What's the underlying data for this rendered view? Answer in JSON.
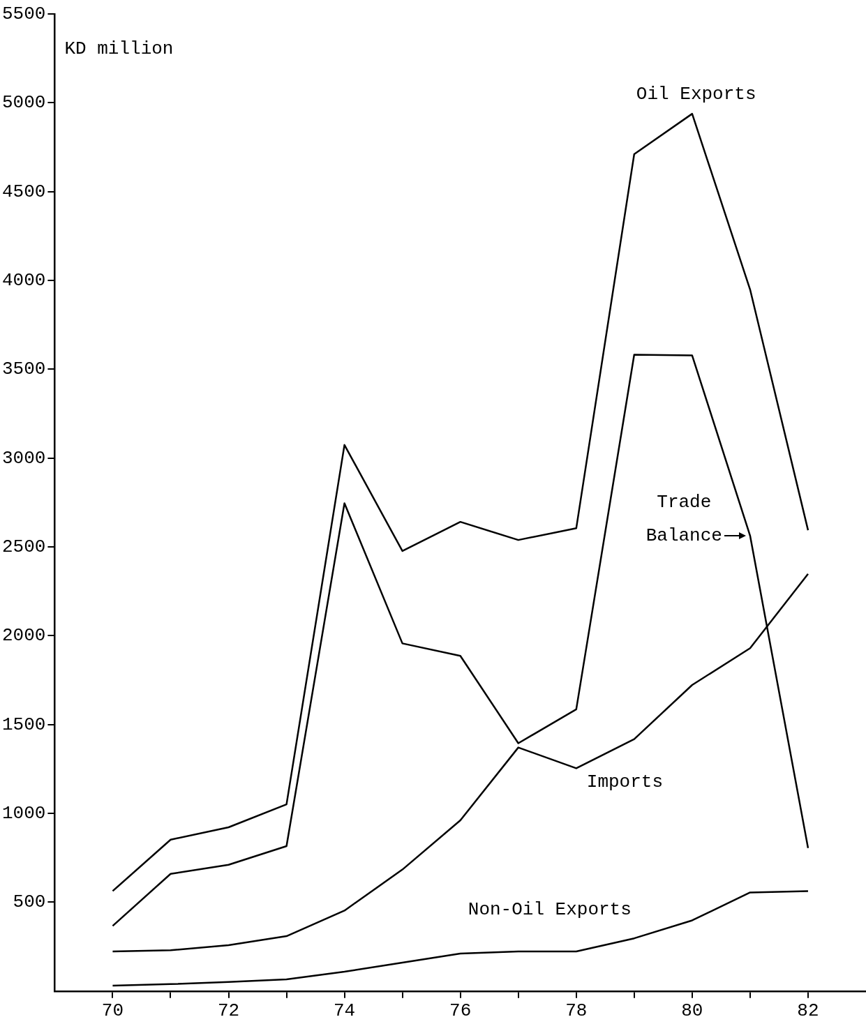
{
  "chart_data": {
    "type": "line",
    "ylabel": "KD million",
    "x": [
      70,
      71,
      72,
      73,
      74,
      75,
      76,
      77,
      78,
      79,
      80,
      81,
      82
    ],
    "xlim": [
      69,
      83
    ],
    "xticks": [
      70,
      {
        "value": 71,
        "label": null
      },
      72,
      {
        "value": 73,
        "label": null
      },
      74,
      {
        "value": 75,
        "label": null
      },
      76,
      {
        "value": 77,
        "label": null
      },
      78,
      {
        "value": 79,
        "label": null
      },
      80,
      {
        "value": 81,
        "label": null
      },
      82
    ],
    "ylim": [
      0,
      5500
    ],
    "yticks": [
      500,
      1000,
      1500,
      2000,
      2500,
      3000,
      3500,
      4000,
      4500,
      5000,
      5500
    ],
    "grid": false,
    "legend": false,
    "marker": "none",
    "line_style": "solid",
    "series": [
      {
        "name": "Oil Exports",
        "color": "#000000",
        "values": [
          563,
          852,
          922,
          1051,
          3074,
          2477,
          2641,
          2539,
          2605,
          4711,
          4938,
          3949,
          2594
        ]
      },
      {
        "name": "Trade Balance",
        "color": "#000000",
        "values": [
          367,
          660,
          711,
          816,
          2746,
          1957,
          1887,
          1395,
          1586,
          3582,
          3578,
          2563,
          805
        ]
      },
      {
        "name": "Imports",
        "color": "#000000",
        "values": [
          223,
          230,
          258,
          309,
          453,
          684,
          961,
          1371,
          1254,
          1418,
          1723,
          1930,
          2348
        ]
      },
      {
        "name": "Non-Oil Exports",
        "color": "#000000",
        "values": [
          31,
          39,
          51,
          66,
          109,
          160,
          211,
          223,
          223,
          297,
          398,
          555,
          563
        ]
      }
    ]
  }
}
